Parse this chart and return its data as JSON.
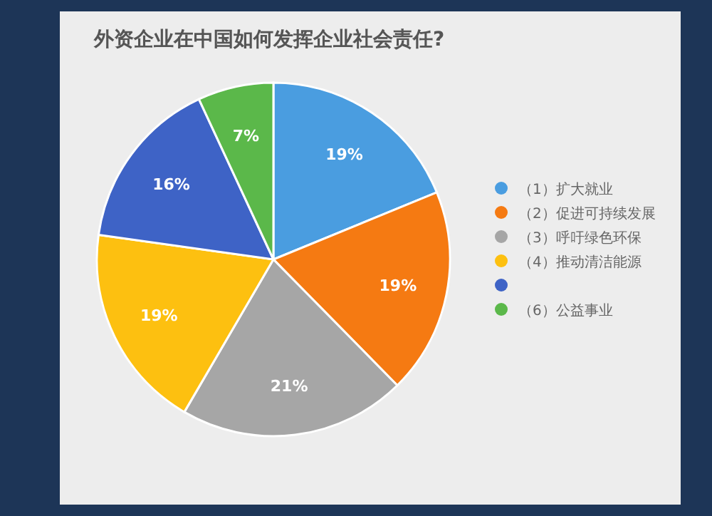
{
  "chart_data": {
    "type": "pie",
    "title": "外资企业在中国如何发挥企业社会责任?",
    "categories": [
      "（1）扩大就业",
      "（2）促进可持续发展",
      "（3）呼吁绿色环保",
      "（4）推动清洁能源",
      null,
      "（6）公益事业"
    ],
    "values": [
      19,
      19,
      21,
      19,
      16,
      7
    ],
    "colors": [
      "#4a9de0",
      "#f57a12",
      "#a6a6a6",
      "#fdc010",
      "#3e63c6",
      "#5bb84a"
    ],
    "value_labels": [
      "19%",
      "19%",
      "21%",
      "19%",
      "16%",
      "7%"
    ],
    "legend": "right"
  }
}
